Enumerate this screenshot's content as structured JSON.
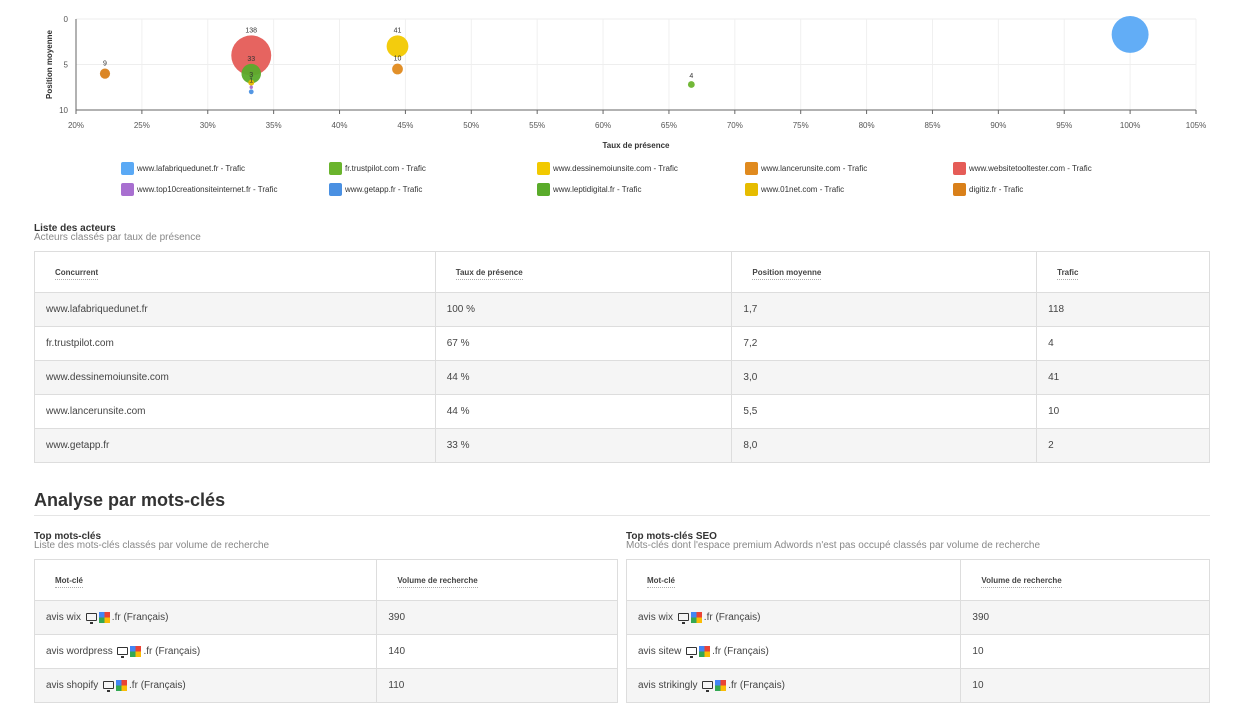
{
  "chart_data": {
    "type": "scatter",
    "xlabel": "Taux de présence",
    "ylabel": "Position moyenne",
    "xlim": [
      20,
      105
    ],
    "ylim": [
      0,
      10
    ],
    "y_reversed": true,
    "x_ticks": [
      "20%",
      "25%",
      "30%",
      "35%",
      "40%",
      "45%",
      "50%",
      "55%",
      "60%",
      "65%",
      "70%",
      "75%",
      "80%",
      "85%",
      "90%",
      "95%",
      "100%",
      "105%"
    ],
    "y_ticks": [
      "0",
      "5",
      "10"
    ],
    "grid": true,
    "legend_position": "bottom",
    "series": [
      {
        "name": "www.lafabriquedunet.fr - Trafic",
        "color": "#5aa9f5",
        "points": [
          {
            "x": 100,
            "y": 1.7,
            "size": 118,
            "label": ""
          }
        ]
      },
      {
        "name": "fr.trustpilot.com - Trafic",
        "color": "#6ab42d",
        "points": [
          {
            "x": 66.7,
            "y": 7.2,
            "size": 4,
            "label": "4"
          }
        ]
      },
      {
        "name": "www.dessinemoiunsite.com - Trafic",
        "color": "#f2c900",
        "points": [
          {
            "x": 44.4,
            "y": 3.0,
            "size": 41,
            "label": "41"
          }
        ]
      },
      {
        "name": "www.lancerunsite.com - Trafic",
        "color": "#e08a1e",
        "points": [
          {
            "x": 44.4,
            "y": 5.5,
            "size": 10,
            "label": "10"
          }
        ]
      },
      {
        "name": "www.websitetooltester.com - Trafic",
        "color": "#e55c57",
        "points": [
          {
            "x": 33.3,
            "y": 4.0,
            "size": 138,
            "label": "138"
          }
        ]
      },
      {
        "name": "www.top10creationsiteinternet.fr - Trafic",
        "color": "#a86fd0",
        "points": [
          {
            "x": 33.3,
            "y": 7.5,
            "size": 1,
            "label": "1"
          }
        ]
      },
      {
        "name": "www.getapp.fr - Trafic",
        "color": "#4a90e2",
        "points": [
          {
            "x": 33.3,
            "y": 8.0,
            "size": 2,
            "label": ""
          }
        ]
      },
      {
        "name": "www.leptidigital.fr - Trafic",
        "color": "#5aab2b",
        "points": [
          {
            "x": 33.3,
            "y": 6.0,
            "size": 33,
            "label": "33"
          }
        ]
      },
      {
        "name": "www.01net.com - Trafic",
        "color": "#e6bc00",
        "points": [
          {
            "x": 33.3,
            "y": 7.0,
            "size": 3,
            "label": "3"
          }
        ]
      },
      {
        "name": "digitiz.fr - Trafic",
        "color": "#d9801a",
        "points": [
          {
            "x": 22.2,
            "y": 6.0,
            "size": 9,
            "label": "9"
          }
        ]
      }
    ]
  },
  "actors": {
    "title": "Liste des acteurs",
    "subtitle": "Acteurs classés par taux de présence",
    "columns": [
      "Concurrent",
      "Taux de présence",
      "Position moyenne",
      "Trafic"
    ],
    "rows": [
      [
        "www.lafabriquedunet.fr",
        "100 %",
        "1,7",
        "118"
      ],
      [
        "fr.trustpilot.com",
        "67 %",
        "7,2",
        "4"
      ],
      [
        "www.dessinemoiunsite.com",
        "44 %",
        "3,0",
        "41"
      ],
      [
        "www.lancerunsite.com",
        "44 %",
        "5,5",
        "10"
      ],
      [
        "www.getapp.fr",
        "33 %",
        "8,0",
        "2"
      ]
    ]
  },
  "analysis_title": "Analyse par mots-clés",
  "top_keywords": {
    "title": "Top mots-clés",
    "subtitle": "Liste des mots-clés classés par volume de recherche",
    "columns": [
      "Mot-clé",
      "Volume de recherche"
    ],
    "rows": [
      {
        "keyword": "avis wix",
        "locale": ".fr (Français)",
        "volume": "390"
      },
      {
        "keyword": "avis wordpress",
        "locale": ".fr (Français)",
        "volume": "140"
      },
      {
        "keyword": "avis shopify",
        "locale": ".fr (Français)",
        "volume": "110"
      }
    ]
  },
  "top_seo": {
    "title": "Top mots-clés SEO",
    "subtitle": "Mots-clés dont l'espace premium Adwords n'est pas occupé classés par volume de recherche",
    "columns": [
      "Mot-clé",
      "Volume de recherche"
    ],
    "rows": [
      {
        "keyword": "avis wix",
        "locale": ".fr (Français)",
        "volume": "390"
      },
      {
        "keyword": "avis sitew",
        "locale": ".fr (Français)",
        "volume": "10"
      },
      {
        "keyword": "avis strikingly",
        "locale": ".fr (Français)",
        "volume": "10"
      }
    ]
  }
}
